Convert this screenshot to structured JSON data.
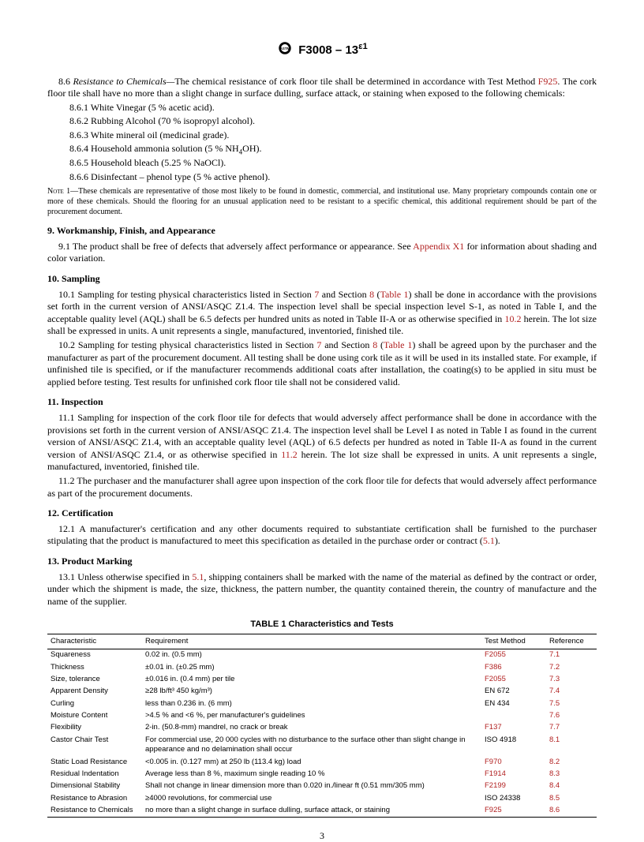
{
  "header": {
    "designation": "F3008 – 13",
    "epsilon": "ε1"
  },
  "s86": {
    "lead": "8.6 Resistance to Chemicals—The chemical resistance of cork floor tile shall be determined in accordance with Test Method ",
    "linkA": "F925",
    "tail": ". The cork floor tile shall have no more than a slight change in surface dulling, surface attack, or staining when exposed to the following chemicals:",
    "items": [
      "8.6.1 White Vinegar (5 % acetic acid).",
      "8.6.2 Rubbing Alcohol (70 % isopropyl alcohol).",
      "8.6.3 White mineral oil (medicinal grade).",
      "8.6.4 Household ammonia solution (5 % NH4OH).",
      "8.6.5 Household bleach (5.25 % NaOCl).",
      "8.6.6 Disinfectant – phenol type (5 % active phenol)."
    ],
    "note": "NOTE 1—These chemicals are representative of those most likely to be found in domestic, commercial, and institutional use. Many proprietary compounds contain one or more of these chemicals. Should the flooring for an unusual application need to be resistant to a specific chemical, this additional requirement should be part of the procurement document."
  },
  "s9": {
    "head": "9.  Workmanship, Finish, and Appearance",
    "p1a": "9.1 The product shall be free of defects that adversely affect performance or appearance. See ",
    "p1link": "Appendix X1",
    "p1b": " for information about shading and color variation."
  },
  "s10": {
    "head": "10.  Sampling",
    "p1": "10.1 Sampling for testing physical characteristics listed in Section 7 and Section 8 (Table 1) shall be done in accordance with the provisions set forth in the current version of ANSI/ASQC Z1.4. The inspection level shall be special inspection level S-1, as noted in Table I, and the acceptable quality level (AQL) shall be 6.5 defects per hundred units as noted in Table II-A or as otherwise specified in 10.2 herein. The lot size shall be expressed in units. A unit represents a single, manufactured, inventoried, finished tile.",
    "p2": "10.2 Sampling for testing physical characteristics listed in Section 7 and Section 8 (Table 1) shall be agreed upon by the purchaser and the manufacturer as part of the procurement document. All testing shall be done using cork tile as it will be used in its installed state. For example, if unfinished tile is specified, or if the manufacturer recommends additional coats after installation, the coating(s) to be applied in situ must be applied before testing. Test results for unfinished cork floor tile shall not be considered valid."
  },
  "s11": {
    "head": "11.  Inspection",
    "p1": "11.1 Sampling for inspection of the cork floor tile for defects that would adversely affect performance shall be done in accordance with the provisions set forth in the current version of ANSI/ASQC Z1.4. The inspection level shall be Level I as noted in Table I as found in the current version of ANSI/ASQC Z1.4, with an acceptable quality level (AQL) of 6.5 defects per hundred as noted in Table II-A as found in the current version of ANSI/ASQC Z1.4, or as otherwise specified in 11.2 herein. The lot size shall be expressed in units. A unit represents a single, manufactured, inventoried, finished tile.",
    "p2": "11.2 The purchaser and the manufacturer shall agree upon inspection of the cork floor tile for defects that would adversely affect performance as part of the procurement documents."
  },
  "s12": {
    "head": "12.  Certification",
    "p1": "12.1 A manufacturer's certification and any other documents required to substantiate certification shall be furnished to the purchaser stipulating that the product is manufactured to meet this specification as detailed in the purchase order or contract (5.1)."
  },
  "s13": {
    "head": "13.  Product Marking",
    "p1": "13.1 Unless otherwise specified in 5.1, shipping containers shall be marked with the name of the material as defined by the contract or order, under which the shipment is made, the size, thickness, the pattern number, the quantity contained therein, the country of manufacture and the name of the supplier."
  },
  "table": {
    "title": "TABLE 1 Characteristics and Tests",
    "columns": [
      "Characteristic",
      "Requirement",
      "Test Method",
      "Reference"
    ],
    "rows": [
      [
        "Squareness",
        "0.02 in. (0.5 mm)",
        "F2055",
        "7.1"
      ],
      [
        "Thickness",
        "±0.01 in. (±0.25 mm)",
        "F386",
        "7.2"
      ],
      [
        "Size, tolerance",
        "±0.016 in. (0.4 mm) per tile",
        "F2055",
        "7.3"
      ],
      [
        "Apparent Density",
        "≥28 lb/ft³ 450 kg/m³)",
        "EN 672",
        "7.4"
      ],
      [
        "Curling",
        "less than 0.236 in. (6 mm)",
        "EN 434",
        "7.5"
      ],
      [
        "Moisture Content",
        ">4.5 % and <6 %, per manufacturer's guidelines",
        "",
        "7.6"
      ],
      [
        "Flexibility",
        "2-in. (50.8-mm) mandrel, no crack or break",
        "F137",
        "7.7"
      ],
      [
        "Castor Chair Test",
        "For commercial use, 20 000 cycles with no disturbance to the surface other than slight change in appearance and no delamination shall occur",
        "ISO 4918",
        "8.1"
      ],
      [
        "Static Load Resistance",
        "<0.005 in. (0.127 mm) at 250 lb (113.4 kg) load",
        "F970",
        "8.2"
      ],
      [
        "Residual Indentation",
        "Average less than 8 %, maximum single reading 10 %",
        "F1914",
        "8.3"
      ],
      [
        "Dimensional Stability",
        "Shall not change in linear dimension more than 0.020 in./linear ft (0.51 mm/305 mm)",
        "F2199",
        "8.4"
      ],
      [
        "Resistance to Abrasion",
        "≥4000 revolutions, for commercial use",
        "ISO 24338",
        "8.5"
      ],
      [
        "Resistance to Chemicals",
        "no more than a slight change in surface dulling, surface attack, or staining",
        "F925",
        "8.6"
      ]
    ],
    "method_links": {
      "F2055": 1,
      "F386": 1,
      "F137": 1,
      "F970": 1,
      "F1914": 1,
      "F2199": 1,
      "F925": 1
    },
    "ref_links": {
      "7.1": 1,
      "7.2": 1,
      "7.3": 1,
      "7.4": 1,
      "7.5": 1,
      "7.6": 1,
      "7.7": 1,
      "8.1": 1,
      "8.2": 1,
      "8.3": 1,
      "8.4": 1,
      "8.5": 1,
      "8.6": 1
    }
  },
  "links": {
    "s10p1": [
      "7",
      "8",
      "Table 1",
      "10.2"
    ],
    "s10p2": [
      "7",
      "8",
      "Table 1"
    ],
    "s11p1": [
      "11.2"
    ],
    "s12p1": [
      "5.1"
    ],
    "s13p1": [
      "5.1"
    ]
  },
  "pagenum": "3",
  "colors": {
    "link": "#b22222"
  },
  "layout": {
    "col_widths": [
      "120px",
      "auto",
      "80px",
      "64px"
    ]
  }
}
